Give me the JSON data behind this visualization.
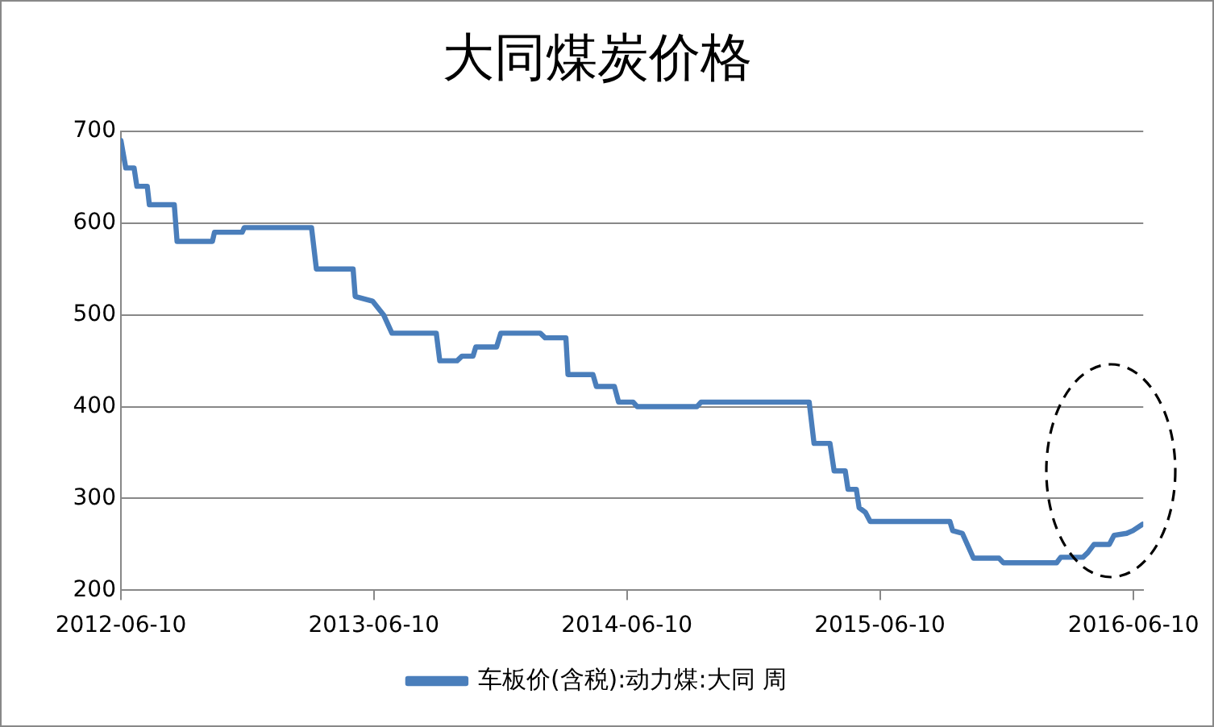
{
  "chart_data": {
    "type": "line",
    "title": "大同煤炭价格",
    "x": [
      "2012-06-10",
      "2012-06-17",
      "2012-06-29",
      "2012-07-03",
      "2012-07-18",
      "2012-07-21",
      "2012-08-26",
      "2012-08-30",
      "2012-10-20",
      "2012-10-23",
      "2012-12-02",
      "2012-12-05",
      "2013-03-12",
      "2013-03-19",
      "2013-05-11",
      "2013-05-14",
      "2013-06-08",
      "2013-06-24",
      "2013-07-06",
      "2013-09-08",
      "2013-09-13",
      "2013-10-08",
      "2013-10-15",
      "2013-10-31",
      "2013-11-04",
      "2013-12-04",
      "2013-12-10",
      "2014-02-05",
      "2014-02-12",
      "2014-03-14",
      "2014-03-17",
      "2014-04-22",
      "2014-04-27",
      "2014-05-23",
      "2014-05-29",
      "2014-06-19",
      "2014-06-25",
      "2014-09-19",
      "2014-09-25",
      "2015-02-28",
      "2015-03-07",
      "2015-03-30",
      "2015-04-05",
      "2015-04-21",
      "2015-04-25",
      "2015-05-07",
      "2015-05-11",
      "2015-05-20",
      "2015-05-27",
      "2015-09-19",
      "2015-09-23",
      "2015-10-07",
      "2015-10-23",
      "2015-11-29",
      "2015-12-05",
      "2016-02-20",
      "2016-02-26",
      "2016-03-29",
      "2016-04-05",
      "2016-04-14",
      "2016-05-06",
      "2016-05-13",
      "2016-05-31",
      "2016-06-09",
      "2016-06-23"
    ],
    "series": [
      {
        "name": "车板价(含税):动力煤:大同 周",
        "color": "#4a7ebb",
        "values": [
          690,
          660,
          660,
          640,
          640,
          620,
          620,
          580,
          580,
          590,
          590,
          595,
          595,
          550,
          550,
          520,
          515,
          500,
          480,
          480,
          450,
          450,
          455,
          455,
          465,
          465,
          480,
          480,
          475,
          475,
          435,
          435,
          422,
          422,
          405,
          405,
          400,
          400,
          405,
          405,
          360,
          360,
          330,
          330,
          310,
          310,
          290,
          285,
          275,
          275,
          265,
          262,
          235,
          235,
          230,
          230,
          236,
          236,
          241,
          250,
          250,
          260,
          262,
          265,
          272
        ]
      }
    ],
    "xlim": [
      "2012-06-10",
      "2016-06-24"
    ],
    "xticks": [
      "2012-06-10",
      "2013-06-10",
      "2014-06-10",
      "2015-06-10",
      "2016-06-10"
    ],
    "ylim": [
      200,
      700
    ],
    "yticks": [
      200,
      300,
      400,
      500,
      600,
      700
    ],
    "grid": "y",
    "legend": "bottom",
    "marker": "none",
    "line_style": "solid"
  }
}
